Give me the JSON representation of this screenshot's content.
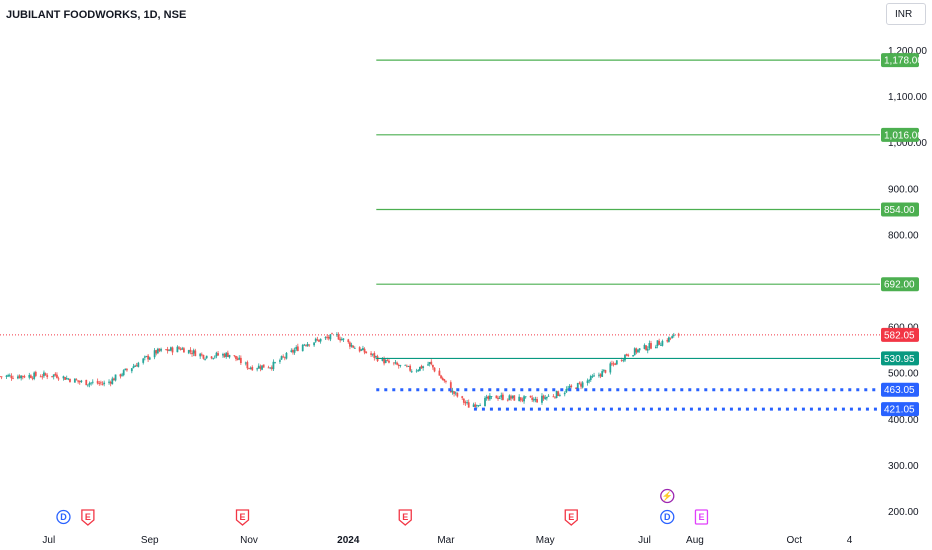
{
  "header": {
    "title": "JUBILANT FOODWORKS, 1D, NSE",
    "currency": "INR"
  },
  "colors": {
    "up": "#26a69a",
    "down": "#ef5350",
    "target_line": "#4caf50",
    "resistance_line": "#089981",
    "support_line": "#2962ff",
    "last_price": "#f23645"
  },
  "chart_data": {
    "type": "candlestick",
    "y_axis": {
      "ticks": [
        "200.00",
        "300.00",
        "400.00",
        "500.00",
        "600.00",
        "700.00",
        "800.00",
        "900.00",
        "1,000.00",
        "1,100.00",
        "1,200.00"
      ],
      "ylim": [
        185,
        1225
      ],
      "position": "right"
    },
    "x_axis": {
      "ticks": [
        "Jul",
        "Sep",
        "Nov",
        "2024",
        "Mar",
        "May",
        "Jul",
        "Aug",
        "Oct",
        "4"
      ],
      "tick_dates": [
        "2023-07-01",
        "2023-09-01",
        "2023-11-01",
        "2024-01-01",
        "2024-03-01",
        "2024-05-01",
        "2024-07-01",
        "2024-08-01",
        "2024-10-01",
        "2024-11-04"
      ],
      "xlim": [
        "2023-06-01",
        "2024-11-20"
      ]
    },
    "price_path": [
      [
        "2023-06-01",
        492
      ],
      [
        "2023-07-05",
        495
      ],
      [
        "2023-07-20",
        480
      ],
      [
        "2023-08-05",
        476
      ],
      [
        "2023-08-20",
        510
      ],
      [
        "2023-09-05",
        545
      ],
      [
        "2023-09-20",
        553
      ],
      [
        "2023-10-05",
        536
      ],
      [
        "2023-10-20",
        540
      ],
      [
        "2023-11-01",
        512
      ],
      [
        "2023-11-15",
        515
      ],
      [
        "2023-12-05",
        563
      ],
      [
        "2023-12-25",
        580
      ],
      [
        "2024-01-05",
        555
      ],
      [
        "2024-01-25",
        522
      ],
      [
        "2024-02-10",
        505
      ],
      [
        "2024-02-20",
        520
      ],
      [
        "2024-03-05",
        458
      ],
      [
        "2024-03-15",
        428
      ],
      [
        "2024-04-01",
        448
      ],
      [
        "2024-04-25",
        440
      ],
      [
        "2024-05-10",
        456
      ],
      [
        "2024-05-25",
        478
      ],
      [
        "2024-06-05",
        500
      ],
      [
        "2024-06-20",
        540
      ],
      [
        "2024-07-10",
        565
      ],
      [
        "2024-07-22",
        582.05
      ]
    ],
    "last_price": 582.05,
    "levels": [
      {
        "value": 1178.0,
        "label": "1,178.00",
        "kind": "target",
        "start": "2024-01-01"
      },
      {
        "value": 1016.0,
        "label": "1,016.00",
        "kind": "target",
        "start": "2024-01-01"
      },
      {
        "value": 854.0,
        "label": "854.00",
        "kind": "target",
        "start": "2024-01-01"
      },
      {
        "value": 692.0,
        "label": "692.00",
        "kind": "target",
        "start": "2024-01-01"
      },
      {
        "value": 530.95,
        "label": "530.95",
        "kind": "resistance",
        "start": "2024-01-01"
      },
      {
        "value": 463.05,
        "label": "463.05",
        "kind": "support",
        "start": "2024-01-01"
      },
      {
        "value": 421.05,
        "label": "421.05",
        "kind": "support",
        "start": "2024-03-01"
      }
    ],
    "last_price_label": "582.05"
  },
  "events": [
    {
      "letter": "D",
      "date": "2023-07-10",
      "color": "#2962ff",
      "shape": "circle"
    },
    {
      "letter": "E",
      "date": "2023-07-25",
      "color": "#f23645",
      "shape": "shield"
    },
    {
      "letter": "E",
      "date": "2023-10-28",
      "color": "#f23645",
      "shape": "shield"
    },
    {
      "letter": "E",
      "date": "2024-02-05",
      "color": "#f23645",
      "shape": "shield"
    },
    {
      "letter": "E",
      "date": "2024-05-17",
      "color": "#f23645",
      "shape": "shield"
    },
    {
      "letter": "D",
      "date": "2024-07-15",
      "color": "#2962ff",
      "shape": "circle"
    },
    {
      "letter": "⚡",
      "date": "2024-07-15",
      "color": "#9c27b0",
      "shape": "circle-top"
    },
    {
      "letter": "E",
      "date": "2024-08-05",
      "color": "#e040fb",
      "shape": "square"
    }
  ]
}
